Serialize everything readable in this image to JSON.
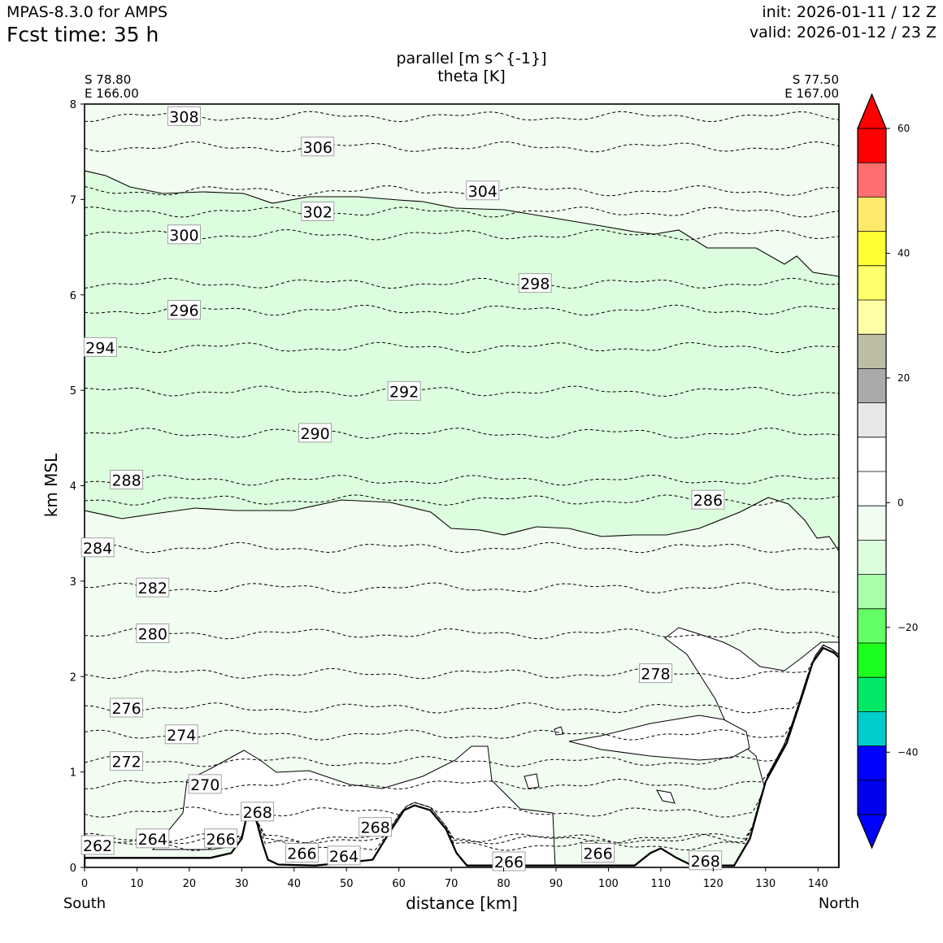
{
  "header": {
    "model": "MPAS-8.3.0 for AMPS",
    "fcst_time": "Fcst time:   35 h",
    "init": "init: 2026-01-11 / 12 Z",
    "valid": "valid: 2026-01-12 / 23 Z"
  },
  "chart_data": {
    "type": "cross-section",
    "title_line1": "parallel [m s^{-1}]",
    "title_line2": "theta [K]",
    "start_point": {
      "lat": "S 78.80",
      "lon": "E 166.00"
    },
    "end_point": {
      "lat": "S 77.50",
      "lon": "E 167.00"
    },
    "xlabel": "distance [km]",
    "ylabel": "km MSL",
    "x_left_label": "South",
    "x_right_label": "North",
    "xlim": [
      0,
      144
    ],
    "ylim": [
      0,
      8
    ],
    "x_ticks": [
      0,
      10,
      20,
      30,
      40,
      50,
      60,
      70,
      80,
      90,
      100,
      110,
      120,
      130,
      140
    ],
    "y_ticks": [
      0,
      1,
      2,
      3,
      4,
      5,
      6,
      7,
      8
    ],
    "terrain": [
      [
        0,
        0.1
      ],
      [
        10,
        0.1
      ],
      [
        24,
        0.1
      ],
      [
        28,
        0.15
      ],
      [
        30,
        0.3
      ],
      [
        31,
        0.55
      ],
      [
        32,
        0.62
      ],
      [
        33,
        0.45
      ],
      [
        34,
        0.25
      ],
      [
        35,
        0.08
      ],
      [
        37,
        0.03
      ],
      [
        44,
        0.02
      ],
      [
        50,
        0.05
      ],
      [
        55,
        0.08
      ],
      [
        58,
        0.35
      ],
      [
        61,
        0.6
      ],
      [
        63,
        0.65
      ],
      [
        66,
        0.6
      ],
      [
        69,
        0.4
      ],
      [
        71,
        0.15
      ],
      [
        73,
        0.02
      ],
      [
        105,
        0.02
      ],
      [
        108,
        0.15
      ],
      [
        110,
        0.2
      ],
      [
        113,
        0.1
      ],
      [
        116,
        0.02
      ],
      [
        124,
        0.02
      ],
      [
        127,
        0.3
      ],
      [
        130,
        0.9
      ],
      [
        134,
        1.3
      ],
      [
        137,
        1.8
      ],
      [
        139,
        2.15
      ],
      [
        141,
        2.3
      ],
      [
        143,
        2.25
      ],
      [
        144,
        2.2
      ]
    ],
    "theta_contours": [
      {
        "value": 262,
        "label": "262",
        "label_at": [
          2.5,
          0.23
        ]
      },
      {
        "value": 264,
        "label": "264",
        "label_at": [
          13,
          0.3
        ]
      },
      {
        "value": 266,
        "label": "266",
        "label_at": [
          26,
          0.3
        ]
      },
      {
        "value": 268,
        "label": "268",
        "label_at": [
          33,
          0.58
        ]
      },
      {
        "value": 270,
        "label": "270",
        "label_at": [
          23,
          0.87
        ]
      },
      {
        "value": 272,
        "label": "272",
        "label_at": [
          8,
          1.11
        ]
      },
      {
        "value": 274,
        "label": "274",
        "label_at": [
          18.5,
          1.39
        ]
      },
      {
        "value": 276,
        "label": "276",
        "label_at": [
          8,
          1.67
        ]
      },
      {
        "value": 278,
        "label": "278",
        "label_at": [
          109,
          2.03
        ]
      },
      {
        "value": 280,
        "label": "280",
        "label_at": [
          13,
          2.45
        ]
      },
      {
        "value": 282,
        "label": "282",
        "label_at": [
          13,
          2.93
        ]
      },
      {
        "value": 284,
        "label": "284",
        "label_at": [
          2.5,
          3.35
        ]
      },
      {
        "value": 286,
        "label": "286",
        "label_at": [
          119,
          3.85
        ]
      },
      {
        "value": 288,
        "label": "288",
        "label_at": [
          8,
          4.06
        ]
      },
      {
        "value": 290,
        "label": "290",
        "label_at": [
          44,
          4.55
        ]
      },
      {
        "value": 292,
        "label": "292",
        "label_at": [
          61,
          4.99
        ]
      },
      {
        "value": 294,
        "label": "294",
        "label_at": [
          3,
          5.45
        ]
      },
      {
        "value": 296,
        "label": "296",
        "label_at": [
          19,
          5.84
        ]
      },
      {
        "value": 298,
        "label": "298",
        "label_at": [
          86,
          6.12
        ]
      },
      {
        "value": 300,
        "label": "300",
        "label_at": [
          19,
          6.63
        ]
      },
      {
        "value": 302,
        "label": "302",
        "label_at": [
          44.5,
          6.87
        ]
      },
      {
        "value": 304,
        "label": "304",
        "label_at": [
          76,
          7.09
        ]
      },
      {
        "value": 306,
        "label": "306",
        "label_at": [
          44.5,
          7.55
        ]
      },
      {
        "value": 308,
        "label": "308",
        "label_at": [
          19,
          7.87
        ]
      }
    ],
    "extra_labels": [
      {
        "label": "266",
        "label_at": [
          41.5,
          0.15
        ]
      },
      {
        "label": "264",
        "label_at": [
          49.5,
          0.12
        ]
      },
      {
        "label": "268",
        "label_at": [
          55.5,
          0.42
        ]
      },
      {
        "label": "266",
        "label_at": [
          81,
          0.06
        ]
      },
      {
        "label": "266",
        "label_at": [
          98,
          0.15
        ]
      },
      {
        "label": "268",
        "label_at": [
          118.5,
          0.07
        ]
      }
    ],
    "colorbar": {
      "ticks": [
        60,
        40,
        20,
        0,
        -20,
        -40
      ],
      "tick_labels": [
        "60",
        "40",
        "20",
        "0",
        "−20",
        "−40"
      ],
      "colors": [
        "#ff0000",
        "#ff6f6f",
        "#ffe86c",
        "#ffff33",
        "#ffff6c",
        "#ffffa6",
        "#bdbda5",
        "#aaaaaa",
        "#e8e8e8",
        "#ffffff",
        "#ffffff",
        "#f1fdf0",
        "#ddfede",
        "#aaffaa",
        "#64ff64",
        "#1dff1d",
        "#00e866",
        "#00cdcd",
        "#0000ff",
        "#0000ee"
      ],
      "over_color": "#ff0000",
      "under_color": "#0000ff"
    },
    "shading": {
      "light_green": "#f1fdf0",
      "green": "#ddfede"
    }
  }
}
